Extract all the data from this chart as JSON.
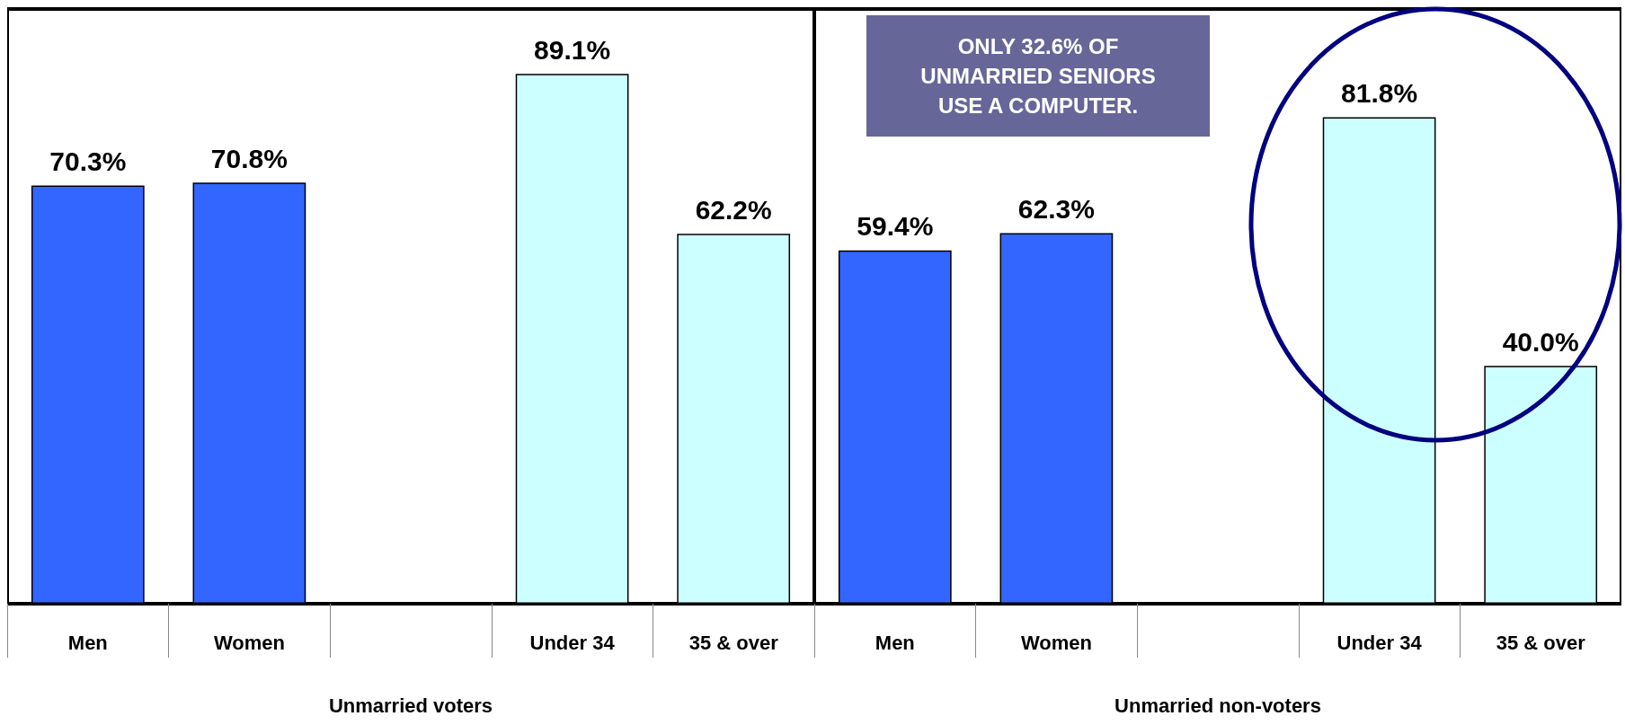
{
  "chart_data": [
    {
      "type": "bar",
      "xlabel": "Unmarried voters",
      "categories": [
        "Men",
        "Women",
        null,
        "Under 34",
        "35 & over"
      ],
      "values": [
        70.3,
        70.8,
        null,
        89.1,
        62.2
      ],
      "colors": [
        "#3366ff",
        "#3366ff",
        null,
        "#ccffff",
        "#ccffff"
      ],
      "value_labels": [
        "70.3%",
        "70.8%",
        null,
        "89.1%",
        "62.2%"
      ],
      "ylim": [
        0,
        100
      ],
      "tick_labels": "x"
    },
    {
      "type": "bar",
      "xlabel": "Unmarried non-voters",
      "categories": [
        "Men",
        "Women",
        null,
        "Under 34",
        "35 & over"
      ],
      "values": [
        59.4,
        62.3,
        null,
        81.8,
        40.0
      ],
      "colors": [
        "#3366ff",
        "#3366ff",
        null,
        "#ccffff",
        "#ccffff"
      ],
      "value_labels": [
        "59.4%",
        "62.3%",
        null,
        "81.8%",
        "40.0%"
      ],
      "ylim": [
        0,
        100
      ],
      "tick_labels": "x",
      "annotations": [
        "ONLY 32.6% OF UNMARRIED SENIORS USE A COMPUTER."
      ]
    }
  ]
}
